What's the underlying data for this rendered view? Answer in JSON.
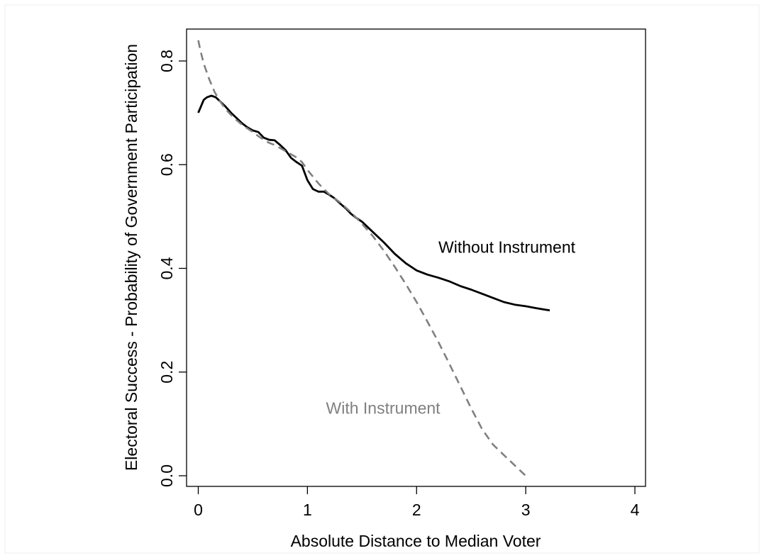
{
  "chart_data": {
    "type": "line",
    "title": "",
    "xlabel": "Absolute Distance to Median Voter",
    "ylabel": "Electoral Success - Probability of Government Participation",
    "xlim": [
      -0.1,
      4.1
    ],
    "ylim": [
      -0.025,
      0.855
    ],
    "x_ticks": [
      0,
      1,
      2,
      3,
      4
    ],
    "x_tick_labels": [
      "0",
      "1",
      "2",
      "3",
      "4"
    ],
    "y_ticks": [
      0.0,
      0.2,
      0.4,
      0.6,
      0.8
    ],
    "y_tick_labels": [
      "0.0",
      "0.2",
      "0.4",
      "0.6",
      "0.8"
    ],
    "grid": false,
    "legend": "none",
    "series": [
      {
        "name": "Without Instrument",
        "color": "#000000",
        "dash": "solid",
        "points": [
          [
            0.0,
            0.7
          ],
          [
            0.03,
            0.715
          ],
          [
            0.05,
            0.725
          ],
          [
            0.08,
            0.73
          ],
          [
            0.12,
            0.733
          ],
          [
            0.16,
            0.73
          ],
          [
            0.2,
            0.722
          ],
          [
            0.25,
            0.712
          ],
          [
            0.3,
            0.7
          ],
          [
            0.35,
            0.69
          ],
          [
            0.4,
            0.68
          ],
          [
            0.45,
            0.672
          ],
          [
            0.5,
            0.666
          ],
          [
            0.55,
            0.663
          ],
          [
            0.6,
            0.652
          ],
          [
            0.65,
            0.648
          ],
          [
            0.7,
            0.647
          ],
          [
            0.75,
            0.638
          ],
          [
            0.8,
            0.628
          ],
          [
            0.85,
            0.613
          ],
          [
            0.9,
            0.605
          ],
          [
            0.95,
            0.598
          ],
          [
            1.0,
            0.57
          ],
          [
            1.05,
            0.553
          ],
          [
            1.1,
            0.548
          ],
          [
            1.15,
            0.548
          ],
          [
            1.2,
            0.542
          ],
          [
            1.25,
            0.535
          ],
          [
            1.3,
            0.525
          ],
          [
            1.35,
            0.516
          ],
          [
            1.4,
            0.505
          ],
          [
            1.45,
            0.497
          ],
          [
            1.5,
            0.49
          ],
          [
            1.6,
            0.47
          ],
          [
            1.7,
            0.45
          ],
          [
            1.8,
            0.428
          ],
          [
            1.9,
            0.41
          ],
          [
            2.0,
            0.396
          ],
          [
            2.1,
            0.388
          ],
          [
            2.2,
            0.382
          ],
          [
            2.3,
            0.375
          ],
          [
            2.4,
            0.366
          ],
          [
            2.5,
            0.359
          ],
          [
            2.6,
            0.351
          ],
          [
            2.7,
            0.343
          ],
          [
            2.8,
            0.335
          ],
          [
            2.9,
            0.33
          ],
          [
            3.0,
            0.327
          ],
          [
            3.1,
            0.323
          ],
          [
            3.22,
            0.319
          ]
        ]
      },
      {
        "name": "With Instrument",
        "color": "#808080",
        "dash": "dashed",
        "points": [
          [
            0.0,
            0.84
          ],
          [
            0.02,
            0.82
          ],
          [
            0.05,
            0.795
          ],
          [
            0.1,
            0.765
          ],
          [
            0.15,
            0.74
          ],
          [
            0.2,
            0.722
          ],
          [
            0.25,
            0.707
          ],
          [
            0.3,
            0.696
          ],
          [
            0.35,
            0.686
          ],
          [
            0.4,
            0.677
          ],
          [
            0.45,
            0.67
          ],
          [
            0.5,
            0.663
          ],
          [
            0.55,
            0.655
          ],
          [
            0.6,
            0.648
          ],
          [
            0.65,
            0.642
          ],
          [
            0.7,
            0.638
          ],
          [
            0.75,
            0.632
          ],
          [
            0.8,
            0.626
          ],
          [
            0.85,
            0.62
          ],
          [
            0.9,
            0.614
          ],
          [
            0.95,
            0.605
          ],
          [
            1.0,
            0.59
          ],
          [
            1.05,
            0.577
          ],
          [
            1.1,
            0.564
          ],
          [
            1.15,
            0.553
          ],
          [
            1.2,
            0.543
          ],
          [
            1.3,
            0.527
          ],
          [
            1.4,
            0.508
          ],
          [
            1.5,
            0.486
          ],
          [
            1.6,
            0.462
          ],
          [
            1.7,
            0.434
          ],
          [
            1.8,
            0.403
          ],
          [
            1.9,
            0.37
          ],
          [
            2.0,
            0.335
          ],
          [
            2.1,
            0.297
          ],
          [
            2.2,
            0.258
          ],
          [
            2.3,
            0.216
          ],
          [
            2.4,
            0.173
          ],
          [
            2.5,
            0.13
          ],
          [
            2.6,
            0.09
          ],
          [
            2.7,
            0.06
          ],
          [
            2.8,
            0.04
          ],
          [
            2.9,
            0.02
          ],
          [
            3.0,
            0.0
          ]
        ]
      }
    ],
    "annotations": [
      {
        "text": "Without Instrument",
        "x": 2.2,
        "y": 0.43,
        "color": "#000000"
      },
      {
        "text": "With Instrument",
        "x": 1.17,
        "y": 0.12,
        "color": "#808080"
      }
    ]
  }
}
